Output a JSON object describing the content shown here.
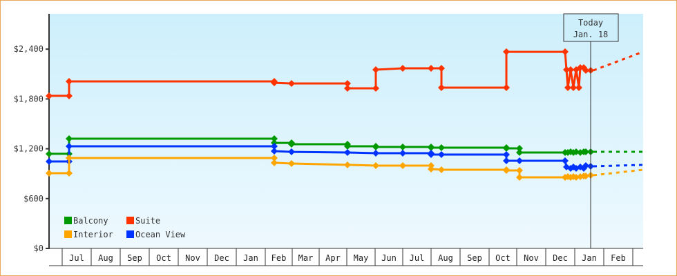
{
  "chart_data": {
    "type": "line",
    "title": "",
    "xlabel": "",
    "ylabel": "",
    "ylim": [
      0,
      2800
    ],
    "y_ticks": [
      {
        "label": "$0",
        "value": 0
      },
      {
        "label": "$600",
        "value": 600
      },
      {
        "label": "$1,200",
        "value": 1200
      },
      {
        "label": "$1,800",
        "value": 1800
      },
      {
        "label": "$2,400",
        "value": 2400
      }
    ],
    "x_months": [
      "Jul",
      "Aug",
      "Sep",
      "Oct",
      "Nov",
      "Dec",
      "Jan",
      "Feb",
      "Mar",
      "Apr",
      "May",
      "Jun",
      "Jul",
      "Aug",
      "Sep",
      "Oct",
      "Nov",
      "Dec",
      "Jan",
      "Feb"
    ],
    "grid": false,
    "legend_position": "lower-left",
    "today_marker": {
      "line1": "Today",
      "line2": "Jan. 18"
    },
    "series": [
      {
        "name": "Balcony",
        "color": "#009900",
        "points": [
          [
            71,
            1139
          ],
          [
            100,
            1139
          ],
          [
            100,
            1321
          ],
          [
            397,
            1321
          ],
          [
            397,
            1271
          ],
          [
            422,
            1271
          ],
          [
            422,
            1255
          ],
          [
            503,
            1255
          ],
          [
            503,
            1230
          ],
          [
            544,
            1230
          ],
          [
            544,
            1222
          ],
          [
            583,
            1222
          ],
          [
            583,
            1222
          ],
          [
            624,
            1222
          ],
          [
            624,
            1213
          ],
          [
            639,
            1213
          ],
          [
            639,
            1213
          ],
          [
            733,
            1213
          ],
          [
            733,
            1205
          ],
          [
            752,
            1205
          ],
          [
            752,
            1155
          ],
          [
            818,
            1155
          ],
          [
            822,
            1155
          ],
          [
            826,
            1163
          ],
          [
            830,
            1155
          ],
          [
            834,
            1163
          ],
          [
            840,
            1155
          ],
          [
            845,
            1163
          ],
          [
            848,
            1163
          ],
          [
            855,
            1163
          ]
        ],
        "forecast": [
          [
            855,
            1163
          ],
          [
            931,
            1163
          ]
        ]
      },
      {
        "name": "Suite",
        "color": "#ff3300",
        "points": [
          [
            71,
            1837
          ],
          [
            100,
            1837
          ],
          [
            100,
            2011
          ],
          [
            397,
            2011
          ],
          [
            397,
            1994
          ],
          [
            422,
            1986
          ],
          [
            503,
            1986
          ],
          [
            503,
            1928
          ],
          [
            544,
            1928
          ],
          [
            544,
            2152
          ],
          [
            583,
            2169
          ],
          [
            624,
            2169
          ],
          [
            639,
            2169
          ],
          [
            639,
            1936
          ],
          [
            733,
            1936
          ],
          [
            733,
            2368
          ],
          [
            818,
            2368
          ],
          [
            820,
            2152
          ],
          [
            822,
            1936
          ],
          [
            826,
            2152
          ],
          [
            830,
            1936
          ],
          [
            834,
            2152
          ],
          [
            838,
            1936
          ],
          [
            840,
            2177
          ],
          [
            845,
            2177
          ],
          [
            848,
            2144
          ],
          [
            855,
            2144
          ]
        ],
        "forecast": [
          [
            855,
            2144
          ],
          [
            931,
            2368
          ]
        ]
      },
      {
        "name": "Ocean View",
        "color": "#0033ff",
        "points": [
          [
            71,
            1047
          ],
          [
            100,
            1047
          ],
          [
            100,
            1230
          ],
          [
            397,
            1230
          ],
          [
            397,
            1172
          ],
          [
            422,
            1163
          ],
          [
            503,
            1155
          ],
          [
            544,
            1147
          ],
          [
            583,
            1147
          ],
          [
            624,
            1147
          ],
          [
            624,
            1130
          ],
          [
            639,
            1130
          ],
          [
            733,
            1130
          ],
          [
            733,
            1055
          ],
          [
            752,
            1055
          ],
          [
            818,
            1055
          ],
          [
            820,
            981
          ],
          [
            826,
            964
          ],
          [
            830,
            981
          ],
          [
            834,
            964
          ],
          [
            840,
            981
          ],
          [
            845,
            964
          ],
          [
            848,
            997
          ],
          [
            855,
            989
          ]
        ],
        "forecast": [
          [
            855,
            989
          ],
          [
            931,
            1006
          ]
        ]
      },
      {
        "name": "Interior",
        "color": "#ffa500",
        "points": [
          [
            71,
            906
          ],
          [
            100,
            906
          ],
          [
            100,
            1089
          ],
          [
            397,
            1089
          ],
          [
            397,
            1031
          ],
          [
            422,
            1022
          ],
          [
            503,
            1006
          ],
          [
            544,
            997
          ],
          [
            583,
            997
          ],
          [
            624,
            997
          ],
          [
            624,
            956
          ],
          [
            639,
            947
          ],
          [
            733,
            947
          ],
          [
            733,
            939
          ],
          [
            752,
            939
          ],
          [
            752,
            856
          ],
          [
            818,
            856
          ],
          [
            822,
            864
          ],
          [
            826,
            856
          ],
          [
            830,
            864
          ],
          [
            834,
            856
          ],
          [
            840,
            864
          ],
          [
            845,
            872
          ],
          [
            848,
            872
          ],
          [
            855,
            881
          ]
        ],
        "forecast": [
          [
            855,
            881
          ],
          [
            931,
            947
          ]
        ]
      }
    ]
  },
  "legend": [
    {
      "label": "Balcony",
      "color": "#009900"
    },
    {
      "label": "Suite",
      "color": "#ff3300"
    },
    {
      "label": "Interior",
      "color": "#ffa500"
    },
    {
      "label": "Ocean View",
      "color": "#0033ff"
    }
  ],
  "axis": {
    "y_labels": [
      "$2,400",
      "$1,800",
      "$1,200",
      "$600",
      "$0"
    ],
    "x_labels": [
      "Jul",
      "Aug",
      "Sep",
      "Oct",
      "Nov",
      "Dec",
      "Jan",
      "Feb",
      "Mar",
      "Apr",
      "May",
      "Jun",
      "Jul",
      "Aug",
      "Sep",
      "Oct",
      "Nov",
      "Dec",
      "Jan",
      "Feb"
    ]
  },
  "today": {
    "line1": "Today",
    "line2": "Jan. 18"
  }
}
